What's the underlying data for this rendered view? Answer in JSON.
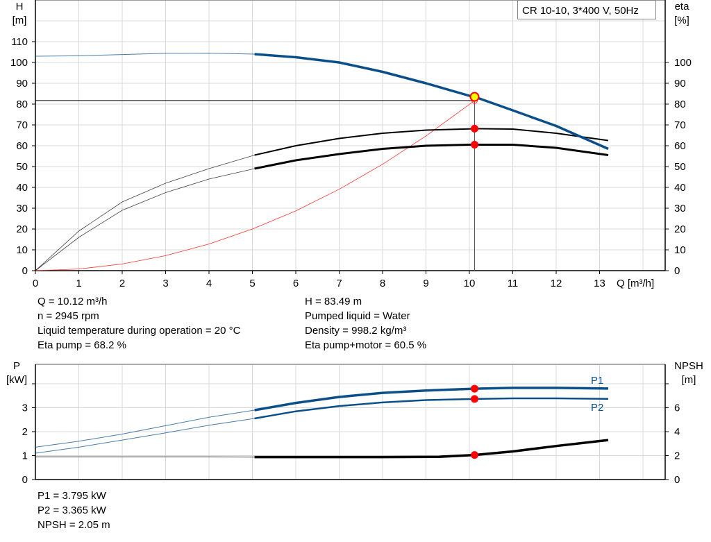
{
  "chart_data": [
    {
      "type": "line",
      "title": "CR 10-10, 3*400 V, 50Hz",
      "xlabel": "Q [m³/h]",
      "ylabel_left": [
        "H",
        "[m]"
      ],
      "ylabel_right": [
        "eta",
        "[%]"
      ],
      "xlim": [
        0,
        14.5
      ],
      "ylim": [
        0,
        130
      ],
      "x_ticks": [
        0,
        1,
        2,
        3,
        4,
        5,
        6,
        7,
        8,
        9,
        10,
        11,
        12,
        13
      ],
      "y_ticks_left": [
        0,
        10,
        20,
        30,
        40,
        50,
        60,
        70,
        80,
        90,
        100,
        110
      ],
      "y_ticks_right": [
        0,
        10,
        20,
        30,
        40,
        50,
        60,
        70,
        80,
        90,
        100
      ],
      "grid": true,
      "operating_range_start": 5.05,
      "series": [
        {
          "id": "H",
          "axis": "left",
          "color": "#0b4f8a",
          "x": [
            0,
            1,
            2,
            3,
            4,
            5.05,
            6,
            7,
            8,
            9,
            10,
            10.12,
            11,
            12,
            13.2
          ],
          "y": [
            103,
            103.2,
            103.8,
            104.4,
            104.5,
            104,
            102.5,
            100,
            95.5,
            90,
            84,
            83.49,
            77,
            69.5,
            58.5
          ]
        },
        {
          "id": "eta_pump",
          "axis": "right",
          "color": "#000000",
          "x": [
            0,
            1,
            2,
            3,
            4,
            5.05,
            6,
            7,
            8,
            9,
            10,
            10.12,
            11,
            12,
            13.2
          ],
          "y": [
            0,
            19,
            33,
            42,
            49,
            55.5,
            60,
            63.5,
            66,
            67.5,
            68.1,
            68.2,
            68,
            66,
            62.5
          ]
        },
        {
          "id": "eta_pump_motor",
          "axis": "right",
          "color": "#000000",
          "x": [
            0,
            1,
            2,
            3,
            4,
            5.05,
            6,
            7,
            8,
            9,
            10,
            10.12,
            11,
            12,
            13.2
          ],
          "y": [
            0,
            16,
            29,
            37.5,
            44,
            49,
            53,
            56,
            58.5,
            60,
            60.5,
            60.5,
            60.5,
            59,
            55.5
          ]
        },
        {
          "id": "system_curve",
          "axis": "left",
          "color": "#ff3030",
          "x": [
            0,
            1,
            2,
            3,
            4,
            5,
            6,
            7,
            8,
            9,
            10.12
          ],
          "y": [
            0,
            0.8,
            3.2,
            7.2,
            12.8,
            20,
            28.7,
            39.1,
            51.1,
            64.7,
            81.7
          ]
        }
      ],
      "duty_point": {
        "Q": 10.12,
        "H": 83.49,
        "eta_pump": 68.2,
        "eta_pump_motor": 60.5,
        "system_H": 81.7
      }
    },
    {
      "type": "line",
      "xlim": [
        0,
        14.5
      ],
      "ylabel_left": [
        "P",
        "[kW]"
      ],
      "ylabel_right": [
        "NPSH",
        "[m]"
      ],
      "ylim_left": [
        0,
        4.8
      ],
      "ylim_right": [
        0,
        9.6
      ],
      "y_ticks_left": [
        0,
        1,
        2,
        3,
        4
      ],
      "y_tick_labels_left": [
        "0",
        "1",
        "2",
        "3",
        ""
      ],
      "y_ticks_right": [
        0,
        2,
        4,
        6,
        8
      ],
      "y_tick_labels_right": [
        "0",
        "2",
        "4",
        "6",
        ""
      ],
      "grid": true,
      "operating_range_start": 5.05,
      "series": [
        {
          "id": "P1",
          "name": "P1",
          "axis": "left",
          "color": "#0b4f8a",
          "x": [
            0,
            1,
            2,
            3,
            4,
            5.05,
            6,
            7,
            8,
            9,
            10.12,
            11,
            12,
            13.2
          ],
          "y": [
            1.35,
            1.6,
            1.9,
            2.25,
            2.6,
            2.9,
            3.2,
            3.45,
            3.62,
            3.72,
            3.795,
            3.83,
            3.83,
            3.8
          ]
        },
        {
          "id": "P2",
          "name": "P2",
          "axis": "left",
          "color": "#0b4f8a",
          "x": [
            0,
            1,
            2,
            3,
            4,
            5.05,
            6,
            7,
            8,
            9,
            10.12,
            11,
            12,
            13.2
          ],
          "y": [
            1.1,
            1.35,
            1.65,
            1.95,
            2.27,
            2.55,
            2.85,
            3.07,
            3.22,
            3.32,
            3.365,
            3.39,
            3.39,
            3.37
          ]
        },
        {
          "id": "NPSH",
          "axis": "right",
          "color": "#000000",
          "x": [
            0,
            1,
            2,
            3,
            4,
            5.05,
            6,
            7,
            8,
            9.3,
            10.12,
            11,
            12,
            13.2
          ],
          "y": [
            1.9,
            1.9,
            1.9,
            1.9,
            1.9,
            1.88,
            1.88,
            1.88,
            1.88,
            1.9,
            2.05,
            2.35,
            2.8,
            3.3
          ]
        }
      ],
      "duty_point": {
        "Q": 10.12,
        "P1": 3.795,
        "P2": 3.365,
        "NPSH": 2.05
      }
    }
  ],
  "info_top_left": [
    "Q = 10.12 m³/h",
    "n = 2945 rpm",
    "Liquid temperature during operation = 20 °C",
    "Eta pump = 68.2 %"
  ],
  "info_top_right": [
    "H = 83.49 m",
    "Pumped liquid = Water",
    "Density = 998.2 kg/m³",
    "Eta pump+motor = 60.5 %"
  ],
  "info_bottom": [
    "P1 = 3.795 kW",
    "P2 = 3.365 kW",
    "NPSH = 2.05 m"
  ],
  "colors": {
    "grid": "#d8d8d8",
    "duty_marker": "#ff0000",
    "duty_highlight": "#ffff00"
  }
}
